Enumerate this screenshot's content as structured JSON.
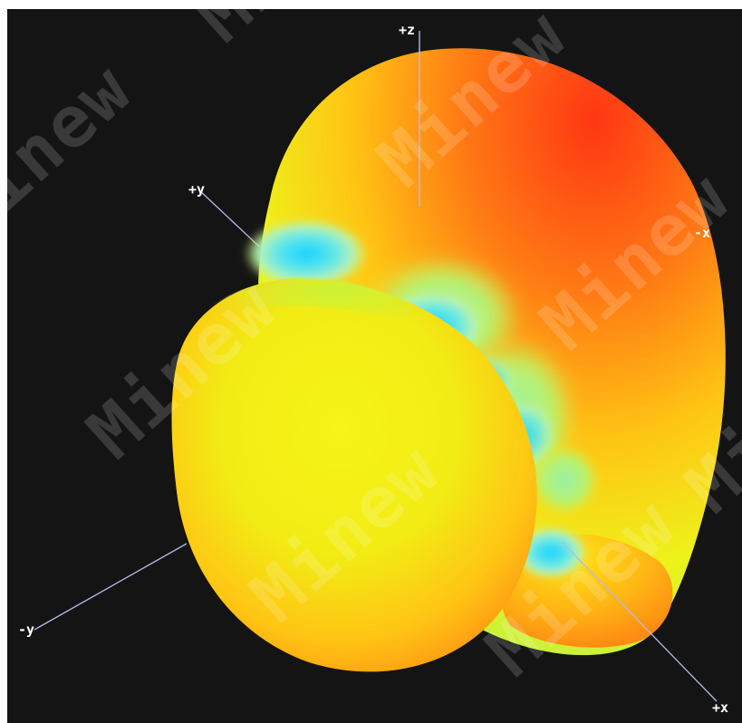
{
  "image": {
    "description_colors": {
      "background": "#141414",
      "frame": "#ffffff",
      "axis_line": "#b8b8e8",
      "pattern_low": "#1ad6ff",
      "pattern_mid": "#f4f40f",
      "pattern_high": "#ff3a14"
    },
    "axes": [
      {
        "label": "+z",
        "semantic": "z-axis-top"
      },
      {
        "label": "+y",
        "semantic": "y-axis-upper-left"
      },
      {
        "label": "-x",
        "semantic": "x-axis-right"
      },
      {
        "label": "-y",
        "semantic": "y-axis-lower-left"
      },
      {
        "label": "+x",
        "semantic": "x-axis-lower-right"
      }
    ],
    "watermark": "Minew"
  }
}
